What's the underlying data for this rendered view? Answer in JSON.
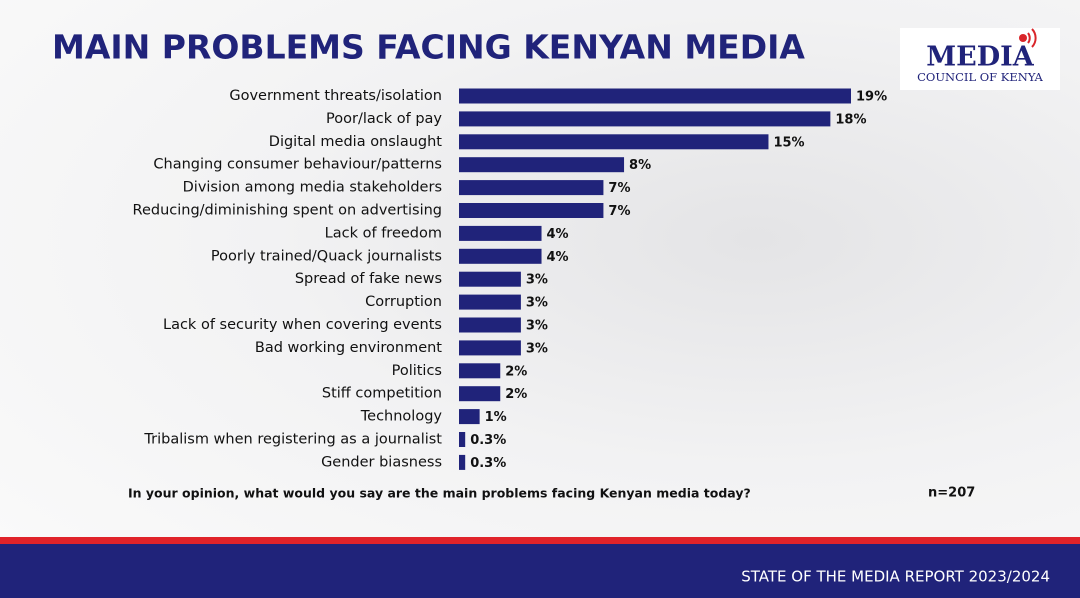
{
  "chart_data": {
    "type": "hbar",
    "title": "MAIN PROBLEMS FACING KENYAN MEDIA",
    "categories": [
      "Government threats/isolation",
      "Poor/lack of pay",
      "Digital media onslaught",
      "Changing consumer behaviour/patterns",
      "Division among media stakeholders",
      "Reducing/diminishing spent on advertising",
      "Lack of freedom",
      "Poorly trained/Quack journalists",
      "Spread of fake news",
      "Corruption",
      "Lack of security when covering events",
      "Bad working environment",
      "Politics",
      "Stiff competition",
      "Technology",
      "Tribalism when registering as a journalist",
      "Gender biasness"
    ],
    "values": [
      19,
      18,
      15,
      8,
      7,
      7,
      4,
      4,
      3,
      3,
      3,
      3,
      2,
      2,
      1,
      0.3,
      0.3
    ],
    "value_labels": [
      "19%",
      "18%",
      "15%",
      "8%",
      "7%",
      "7%",
      "4%",
      "4%",
      "3%",
      "3%",
      "3%",
      "3%",
      "2%",
      "2%",
      "1%",
      "0.3%",
      "0.3%"
    ],
    "color": "#20237a",
    "caption": "In your opinion, what would you say are the main problems facing Kenyan media today?",
    "sample_size": "n=207"
  },
  "logo": {
    "title": "MEDIA",
    "subtitle": "COUNCIL OF KENYA"
  },
  "footer": "STATE OF THE MEDIA REPORT 2023/2024"
}
